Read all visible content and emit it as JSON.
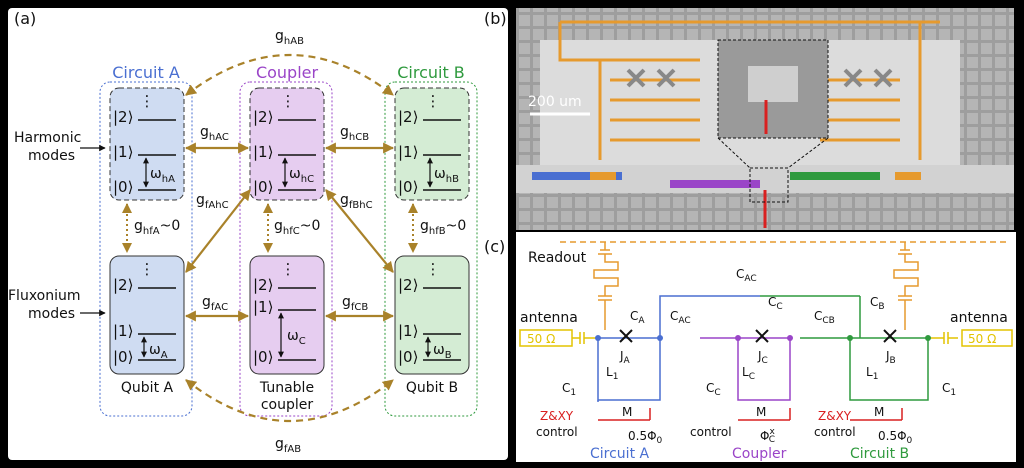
{
  "panel_labels": {
    "a": "(a)",
    "b": "(b)",
    "c": "(c)"
  },
  "panel_a": {
    "circuit_titles": {
      "A": "Circuit A",
      "C": "Coupler",
      "B": "Circuit B"
    },
    "row_labels": {
      "harmonic_1": "Harmonic",
      "harmonic_2": "modes",
      "fluxonium_1": "Fluxonium",
      "fluxonium_2": "modes"
    },
    "bottom_labels": {
      "A": "Qubit A",
      "C1": "Tunable",
      "C2": "coupler",
      "B": "Qubit B"
    },
    "levels": {
      "l2": "|2⟩",
      "l1": "|1⟩",
      "l0": "|0⟩",
      "dots": "⋮"
    },
    "omega": {
      "hA": {
        "main": "ω",
        "sub": "hA"
      },
      "hC": {
        "main": "ω",
        "sub": "hC"
      },
      "hB": {
        "main": "ω",
        "sub": "hB"
      },
      "A": {
        "main": "ω",
        "sub": "A"
      },
      "C": {
        "main": "ω",
        "sub": "C"
      },
      "B": {
        "main": "ω",
        "sub": "B"
      }
    },
    "couplings": {
      "hAB": {
        "main": "g",
        "sub": "hAB"
      },
      "fAB": {
        "main": "g",
        "sub": "fAB"
      },
      "hAC": {
        "main": "g",
        "sub": "hAC"
      },
      "hCB": {
        "main": "g",
        "sub": "hCB"
      },
      "fAC": {
        "main": "g",
        "sub": "fAC"
      },
      "fCB": {
        "main": "g",
        "sub": "fCB"
      },
      "fAhC": {
        "main": "g",
        "sub": "fAhC"
      },
      "fBhC": {
        "main": "g",
        "sub": "fBhC"
      },
      "hfA": {
        "main": "g",
        "sub": "hfA",
        "tail": "~0"
      },
      "hfC": {
        "main": "g",
        "sub": "hfC",
        "tail": "~0"
      },
      "hfB": {
        "main": "g",
        "sub": "hfB",
        "tail": "~0"
      }
    },
    "colors": {
      "circuitA": "#4a6fd1",
      "coupler": "#9a45c8",
      "circuitB": "#2f9a3e",
      "boxA": "#cfdcf2",
      "boxC": "#e6cdf0",
      "boxB": "#d4ecd4",
      "arrow": "#a9822a"
    }
  },
  "panel_b": {
    "scale_bar": "200 um"
  },
  "panel_c": {
    "readout": "Readout",
    "antenna_left": "antenna",
    "antenna_right": "antenna",
    "port_left": "50 Ω",
    "port_right": "50 Ω",
    "caps": {
      "CAC_top": "C",
      "CAC_top_sub": "AC",
      "CA": "C",
      "CA_sub": "A",
      "CC": "C",
      "CC_sub": "C",
      "CB": "C",
      "CB_sub": "B",
      "CAC_mid": "C",
      "CAC_mid_sub": "AC",
      "CCB": "C",
      "CCB_sub": "CB"
    },
    "junctions": {
      "JA": "J",
      "JA_sub": "A",
      "JC": "J",
      "JC_sub": "C",
      "JB": "J",
      "JB_sub": "B"
    },
    "inductors": {
      "L1": "L",
      "L1_sub": "1",
      "LC": "L",
      "LC_sub": "C"
    },
    "shunt": {
      "C1": "C",
      "C1_sub": "1",
      "CCs": "C",
      "CCs_sub": "C"
    },
    "mutual": "M",
    "control_prefix": "Z&",
    "control_xy": "XY",
    "control_word": "control",
    "flux_A": "0.5Φ",
    "flux_sub": "0",
    "flux_C": "Φ",
    "flux_C_sup": "x",
    "flux_C_sub": "C",
    "footer": {
      "A": "Circuit A",
      "C": "Coupler",
      "B": "Circuit B"
    },
    "colors": {
      "readout": "#e69a2e",
      "port": "#e3c400",
      "control": "#d92020"
    }
  }
}
